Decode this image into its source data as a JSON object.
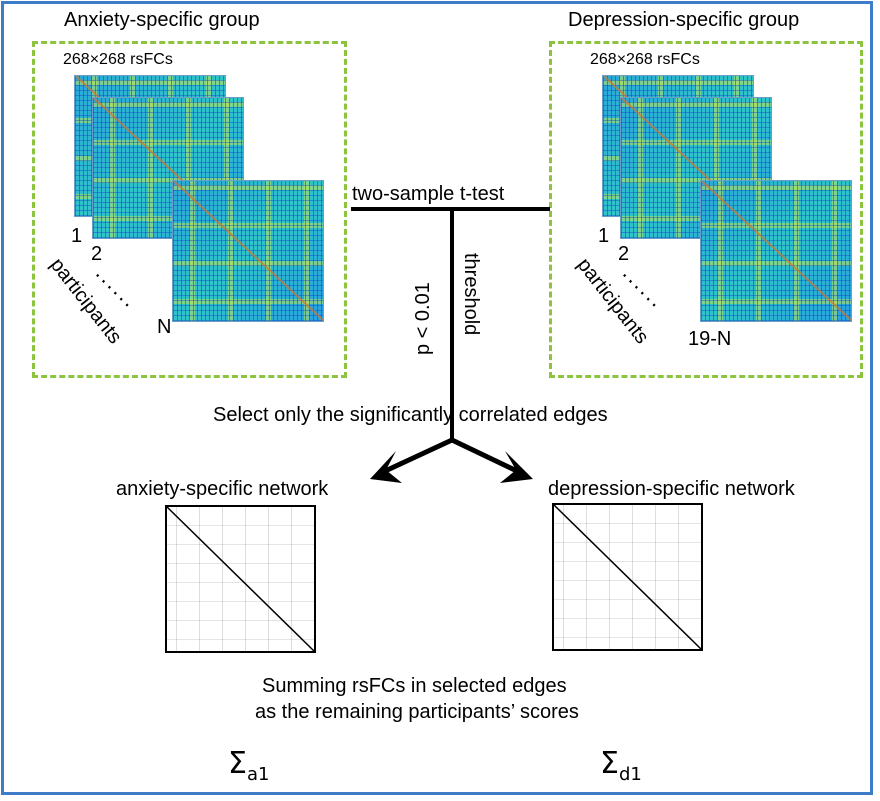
{
  "left_group": {
    "title": "Anxiety-specific group",
    "matrix_label": "268×268 rsFCs",
    "index_1": "1",
    "index_2": "2",
    "dots": "······",
    "index_n": "N",
    "axis_label": "participants"
  },
  "right_group": {
    "title": "Depression-specific group",
    "matrix_label": "268×268 rsFCs",
    "index_1": "1",
    "index_2": "2",
    "dots": "······",
    "index_n": "19-N",
    "axis_label": "participants"
  },
  "test_label": "two-sample t-test",
  "threshold_label": "threshold",
  "p_label": "p < 0.01",
  "select_text": "Select only the significantly correlated edges",
  "networks": {
    "left": "anxiety-specific network",
    "right": "depression-specific network"
  },
  "summing": {
    "line1": "Summing rsFCs in selected edges",
    "line2": "as the remaining participants’ scores"
  },
  "scores": {
    "left_symbol": "Σ",
    "left_sub": "a1",
    "right_symbol": "Σ",
    "right_sub": "d1"
  },
  "colors": {
    "frame": "#3d7cc9",
    "dashed_box": "#8cc43f",
    "matrix_base": "#2fb3d6",
    "arrow": "#000000"
  }
}
